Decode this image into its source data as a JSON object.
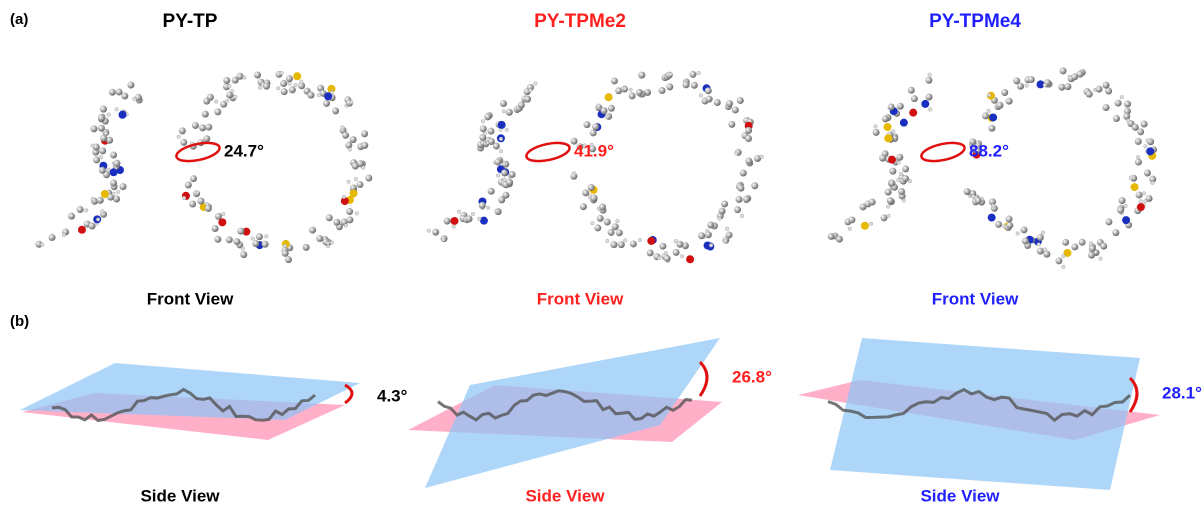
{
  "labels": {
    "a": "(a)",
    "b": "(b)"
  },
  "panels": [
    {
      "title": "PY-TP",
      "color": "#000000",
      "torsion": "24.7°",
      "front_label": "Front View",
      "dihedral": "4.3°",
      "side_label": "Side View"
    },
    {
      "title": "PY-TPMe2",
      "color": "#ff1f1f",
      "torsion": "41.9°",
      "front_label": "Front View",
      "dihedral": "26.8°",
      "side_label": "Side View"
    },
    {
      "title": "PY-TPMe4",
      "color": "#1f1fff",
      "torsion": "88.2°",
      "front_label": "Front View",
      "dihedral": "28.1°",
      "side_label": "Side View"
    }
  ]
}
